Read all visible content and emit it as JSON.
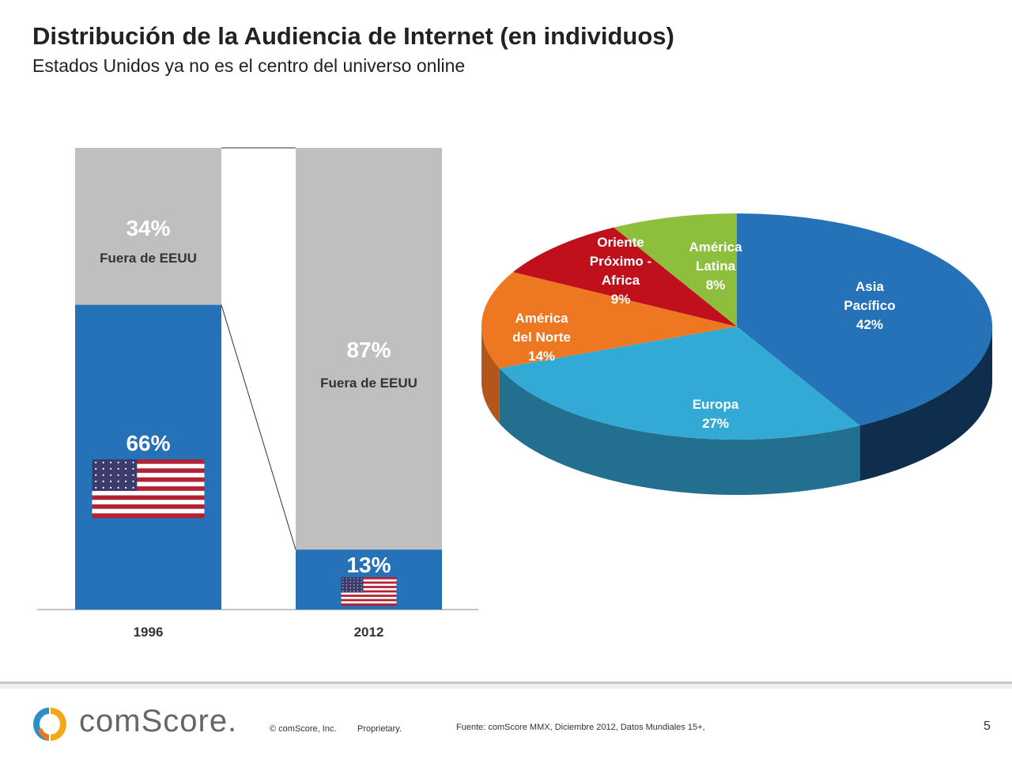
{
  "header": {
    "title": "Distribución de la Audiencia de Internet (en individuos)",
    "subtitle": "Estados Unidos ya no es el centro del universo online"
  },
  "chart_data": [
    {
      "type": "bar",
      "stacked": true,
      "categories": [
        "1996",
        "2012"
      ],
      "series": [
        {
          "name": "EEUU",
          "values": [
            66,
            13
          ],
          "labels": [
            "66%",
            "13%"
          ],
          "color": "#2672B8"
        },
        {
          "name": "Fuera de EEUU",
          "values": [
            34,
            87
          ],
          "labels": [
            "34%",
            "87%"
          ],
          "color": "#BFBFBF"
        }
      ],
      "segment_text": "Fuera de EEUU",
      "ylim": [
        0,
        100
      ]
    },
    {
      "type": "pie",
      "style": "3d",
      "slices": [
        {
          "label": "Asia Pacífico",
          "lines": [
            "Asia",
            "Pacífico"
          ],
          "value": 42,
          "pct": "42%",
          "color": "#2672B8",
          "side": "#0F2D4C"
        },
        {
          "label": "Europa",
          "lines": [
            "Europa"
          ],
          "value": 27,
          "pct": "27%",
          "color": "#33AAD5",
          "side": "#236F8F"
        },
        {
          "label": "América del Norte",
          "lines": [
            "América",
            "del Norte"
          ],
          "value": 14,
          "pct": "14%",
          "color": "#EE7722",
          "side": "#B4561A"
        },
        {
          "label": "Oriente Próximo - Africa",
          "lines": [
            "Oriente",
            "Próximo -",
            "Africa"
          ],
          "value": 9,
          "pct": "9%",
          "color": "#C0101C",
          "side": "#8A0A14"
        },
        {
          "label": "América Latina",
          "lines": [
            "América",
            "Latina"
          ],
          "value": 8,
          "pct": "8%",
          "color": "#8DBE3C",
          "side": "#5F8A28"
        }
      ]
    }
  ],
  "footer": {
    "logo": "comScore.",
    "copyright": "© comScore, Inc.",
    "proprietary": "Proprietary.",
    "source": "Fuente: comScore MMX, Diciembre 2012, Datos Mundiales 15+,",
    "page": "5"
  }
}
